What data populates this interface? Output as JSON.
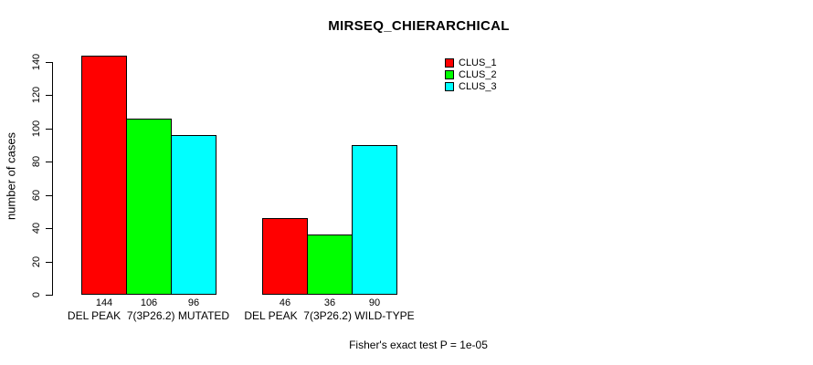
{
  "chart_data": {
    "type": "bar",
    "title": "MIRSEQ_CHIERARCHICAL",
    "xlabel": "",
    "ylabel": "number of cases",
    "ylim": [
      0,
      140
    ],
    "yticks": [
      0,
      20,
      40,
      60,
      80,
      100,
      120,
      140
    ],
    "grid": false,
    "legend_position": "top-right-inside",
    "categories": [
      "DEL PEAK  7(3P26.2) MUTATED",
      "DEL PEAK  7(3P26.2) WILD-TYPE"
    ],
    "series": [
      {
        "name": "CLUS_1",
        "color": "#ff0000",
        "values": [
          144,
          46
        ]
      },
      {
        "name": "CLUS_2",
        "color": "#00ff00",
        "values": [
          106,
          36
        ]
      },
      {
        "name": "CLUS_3",
        "color": "#00ffff",
        "values": [
          96,
          90
        ]
      }
    ],
    "bar_value_labels": [
      [
        144,
        106,
        96
      ],
      [
        46,
        36,
        90
      ]
    ],
    "annotation": "Fisher's exact test P = 1e-05",
    "colors": {
      "background": "#ffffff",
      "axis": "#000000",
      "text": "#000000",
      "clus_1": "#ff0000",
      "clus_2": "#00ff00",
      "clus_3": "#00ffff"
    }
  }
}
